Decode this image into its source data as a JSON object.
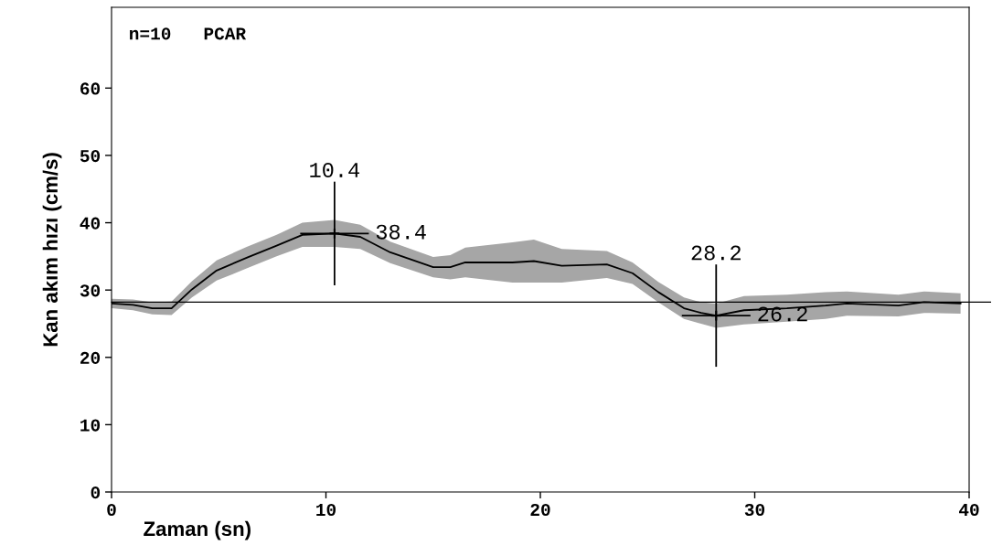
{
  "chart_data": {
    "type": "line",
    "xlabel": "Zaman (sn)",
    "ylabel": "Kan akım hızı (cm/s)",
    "annotations": [
      "n=10   PCAR",
      "10.4",
      "38.4",
      "28.2",
      "26.2"
    ],
    "xlim": [
      0,
      40
    ],
    "xticks": [
      0,
      10,
      20,
      30,
      40
    ],
    "ylim": [
      0,
      72
    ],
    "yticks": [
      0,
      10,
      20,
      30,
      40,
      50,
      60
    ],
    "grid": false,
    "legend": false,
    "ref_lines": [
      {
        "axis": "y",
        "value": 28.2,
        "color": "#000000"
      }
    ],
    "series": [
      {
        "color": "#000000",
        "x": [
          0,
          1.0,
          1.9,
          2.8,
          3.75,
          4.9,
          6.3,
          7.7,
          8.9,
          10.4,
          11.6,
          13.0,
          15.0,
          15.8,
          16.5,
          18.7,
          19.7,
          21.0,
          23.1,
          24.3,
          25.5,
          26.7,
          27.5,
          28.2,
          29.5,
          31.5,
          33.3,
          34.3,
          36.7,
          37.9,
          39.6
        ],
        "values": [
          28.0,
          27.8,
          27.3,
          27.3,
          30.1,
          32.9,
          34.8,
          36.6,
          38.2,
          38.4,
          37.9,
          35.6,
          33.4,
          33.4,
          34.1,
          34.1,
          34.3,
          33.6,
          33.8,
          32.5,
          29.7,
          27.3,
          26.6,
          26.2,
          27.0,
          27.3,
          27.7,
          28.0,
          27.7,
          28.2,
          28.0
        ],
        "lower": [
          27.3,
          27.0,
          26.4,
          26.3,
          28.9,
          31.4,
          33.2,
          35.0,
          36.4,
          36.4,
          36.1,
          34.0,
          31.9,
          31.6,
          31.9,
          31.1,
          31.1,
          31.1,
          31.8,
          30.9,
          28.2,
          25.7,
          25.0,
          24.4,
          24.9,
          25.3,
          25.7,
          26.2,
          26.1,
          26.6,
          26.5
        ],
        "upper": [
          28.7,
          28.6,
          28.2,
          28.3,
          31.3,
          34.4,
          36.4,
          38.2,
          40.0,
          40.4,
          39.7,
          37.2,
          34.9,
          35.2,
          36.3,
          37.1,
          37.5,
          36.1,
          35.8,
          34.1,
          31.2,
          28.9,
          28.2,
          28.0,
          29.1,
          29.3,
          29.7,
          29.8,
          29.3,
          29.8,
          29.5
        ]
      },
      {
        "type": "scatter",
        "marker": "cross",
        "color": "#000000",
        "x": [
          10.4,
          28.2
        ],
        "values": [
          38.4,
          26.2
        ],
        "errors": [
          7.7,
          7.6
        ],
        "xerrors": [
          1.6,
          1.6
        ]
      }
    ]
  }
}
